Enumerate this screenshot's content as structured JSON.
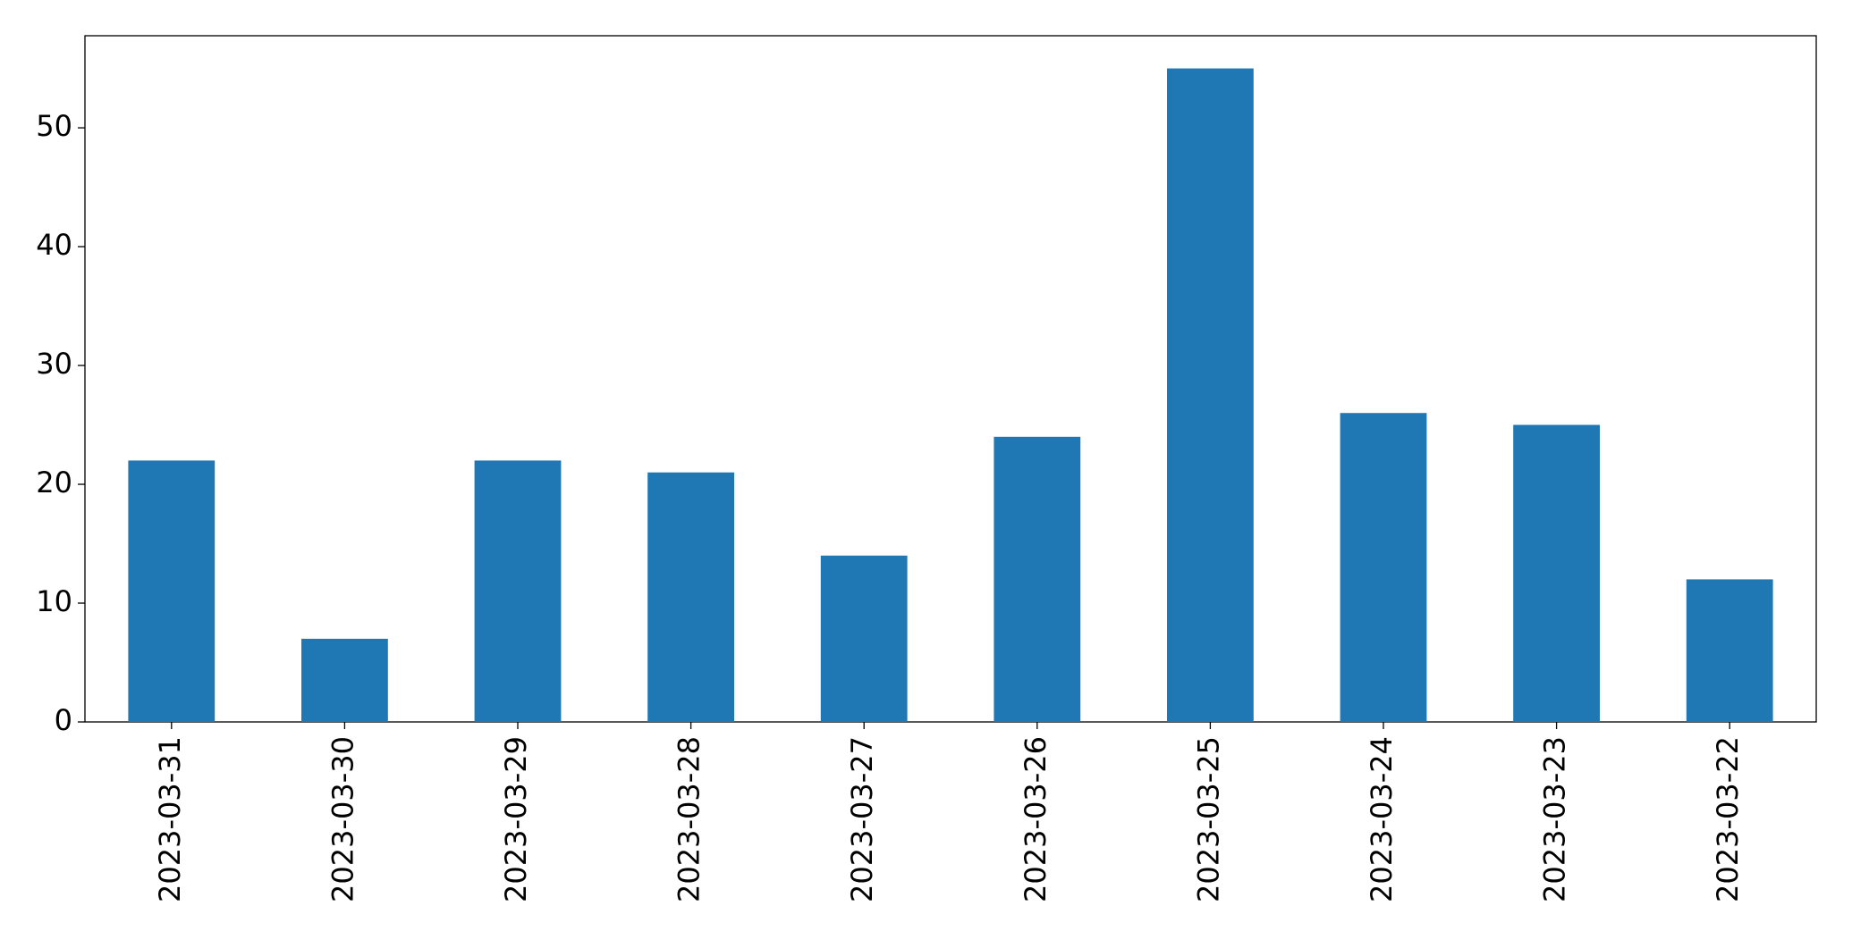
{
  "chart_data": {
    "type": "bar",
    "categories": [
      "2023-03-31",
      "2023-03-30",
      "2023-03-29",
      "2023-03-28",
      "2023-03-27",
      "2023-03-26",
      "2023-03-25",
      "2023-03-24",
      "2023-03-23",
      "2023-03-22"
    ],
    "values": [
      22,
      7,
      22,
      21,
      14,
      24,
      55,
      26,
      25,
      12
    ],
    "color": "#1f77b4",
    "ylim": [
      0,
      57.75
    ],
    "yticks": [
      0,
      10,
      20,
      30,
      40,
      50
    ],
    "grid": false
  }
}
